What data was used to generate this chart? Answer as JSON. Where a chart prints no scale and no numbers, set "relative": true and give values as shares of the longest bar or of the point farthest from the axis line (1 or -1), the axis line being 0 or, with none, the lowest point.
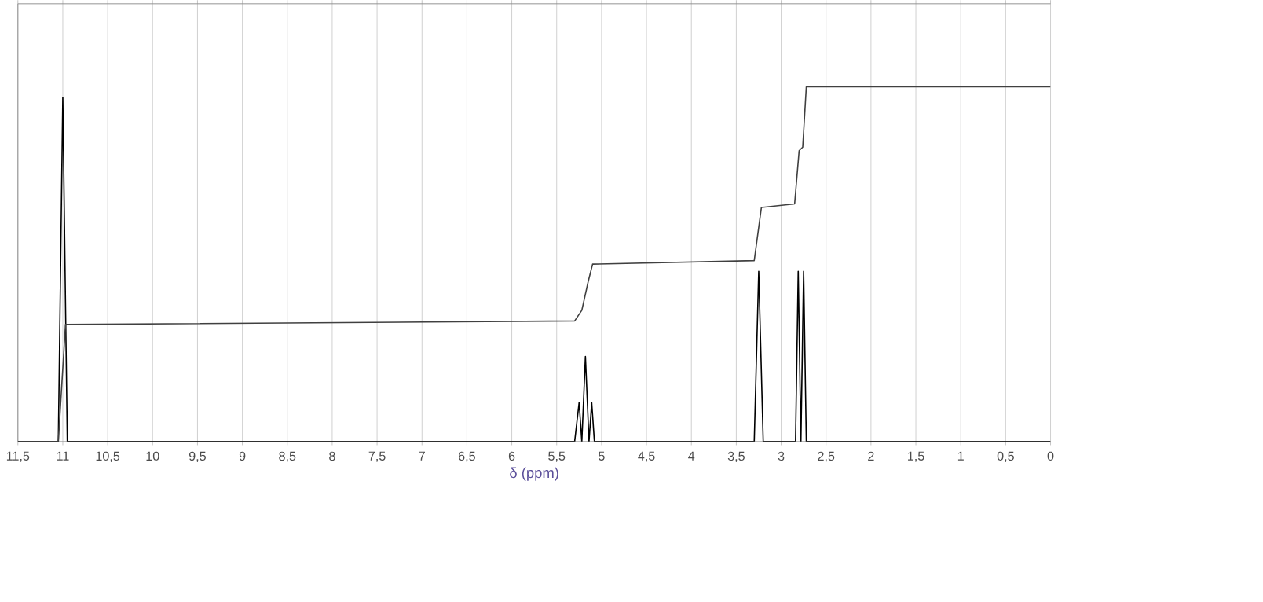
{
  "chart_data": {
    "type": "line",
    "relative": true,
    "xlabel": "δ (ppm)",
    "xlim": [
      11.5,
      0
    ],
    "xticks": [
      {
        "value": 11.5,
        "label": "11,5"
      },
      11,
      {
        "value": 10.5,
        "label": "10,5"
      },
      10,
      {
        "value": 9.5,
        "label": "9,5"
      },
      9,
      {
        "value": 8.5,
        "label": "8,5"
      },
      8,
      {
        "value": 7.5,
        "label": "7,5"
      },
      7,
      {
        "value": 6.5,
        "label": "6,5"
      },
      6,
      {
        "value": 5.5,
        "label": "5,5"
      },
      5,
      {
        "value": 4.5,
        "label": "4,5"
      },
      4,
      {
        "value": 3.5,
        "label": "3,5"
      },
      3,
      {
        "value": 2.5,
        "label": "2,5"
      },
      2,
      {
        "value": 1.5,
        "label": "1,5"
      },
      1,
      {
        "value": 0.5,
        "label": "0,5"
      },
      0
    ],
    "grid": "x",
    "marker": "none",
    "line_style": "solid",
    "series": [
      {
        "color": "#000000",
        "x": [
          11.5,
          11.05,
          11.0,
          10.95,
          5.3,
          5.25,
          5.22,
          5.18,
          5.14,
          5.11,
          5.08,
          3.3,
          3.25,
          3.2,
          2.84,
          2.81,
          2.78,
          2.75,
          2.72,
          0
        ],
        "values": [
          0,
          0,
          0.97,
          0,
          0,
          0.11,
          0,
          0.24,
          0,
          0.11,
          0,
          0,
          0.48,
          0,
          0,
          0.48,
          0,
          0.48,
          0,
          0
        ]
      },
      {
        "color": "#404040",
        "x": [
          11.5,
          11.05,
          10.97,
          5.3,
          5.22,
          5.15,
          5.1,
          3.3,
          3.22,
          2.85,
          2.8,
          2.76,
          2.72,
          0
        ],
        "values": [
          0,
          0,
          0.33,
          0.34,
          0.37,
          0.45,
          0.5,
          0.51,
          0.66,
          0.67,
          0.82,
          0.83,
          1.0,
          1.0
        ]
      }
    ]
  }
}
